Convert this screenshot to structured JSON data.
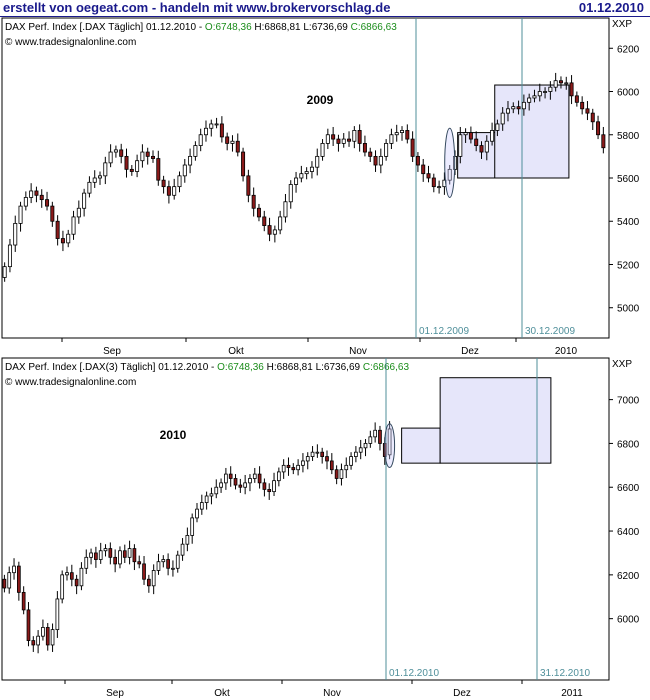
{
  "header": {
    "left_text": "erstellt von oegeat.com - handeln mit www.brokervorschlag.de",
    "date": "01.12.2010"
  },
  "colors": {
    "frame": "#000000",
    "vline": "#4f8f9a",
    "box_fill": "#e6e6fa",
    "candle_up": "#ffffff",
    "candle_down": "#8b1a1a",
    "ohlc_open": "#1a8c1a",
    "header": "#1a1a8c"
  },
  "chart_data": [
    {
      "type": "candlestick",
      "info_line": {
        "prefix": "DAX Perf. Index [.DAX  Täglich] 01.12.2010 - ",
        "open": "O:6748,36",
        "high": "H:6868,81",
        "low": "L:6736,69",
        "close": "C:6866,63"
      },
      "source": "© www.tradesignalonline.com",
      "corner_label": "XXP",
      "year_label": "2009",
      "x_tick_labels": [
        "Sep",
        "Okt",
        "Nov",
        "Dez",
        "2010"
      ],
      "y_ticks": [
        5000,
        5200,
        5400,
        5600,
        5800,
        6000,
        6200
      ],
      "ylim": [
        4860,
        6340
      ],
      "marker_labels": [
        "01.12.2009",
        "30.12.2009"
      ],
      "boxes": [
        {
          "start": 86,
          "end": 93,
          "low": 5600,
          "high": 5810
        },
        {
          "start": 93,
          "end": 106,
          "low": 5600,
          "high": 6030
        }
      ],
      "ellipse": {
        "index": 84,
        "low": 5510,
        "high": 5830
      },
      "closes": [
        5190,
        5290,
        5390,
        5470,
        5510,
        5540,
        5520,
        5500,
        5470,
        5400,
        5320,
        5300,
        5340,
        5420,
        5460,
        5530,
        5580,
        5600,
        5610,
        5670,
        5720,
        5730,
        5700,
        5640,
        5630,
        5680,
        5720,
        5700,
        5690,
        5590,
        5560,
        5520,
        5560,
        5610,
        5660,
        5700,
        5750,
        5800,
        5830,
        5850,
        5850,
        5790,
        5760,
        5770,
        5720,
        5610,
        5520,
        5460,
        5420,
        5380,
        5340,
        5360,
        5420,
        5490,
        5570,
        5600,
        5620,
        5630,
        5650,
        5700,
        5760,
        5800,
        5780,
        5760,
        5780,
        5770,
        5820,
        5760,
        5720,
        5700,
        5660,
        5700,
        5760,
        5800,
        5810,
        5820,
        5780,
        5700,
        5660,
        5620,
        5600,
        5560,
        5560,
        5590,
        5640,
        5700,
        5800,
        5810,
        5780,
        5750,
        5720,
        5770,
        5820,
        5850,
        5900,
        5920,
        5930,
        5920,
        5950,
        5970,
        5980,
        6000,
        6000,
        6020,
        6050,
        6040,
        6040,
        5980,
        5950,
        5920,
        5900,
        5860,
        5800,
        5740
      ],
      "opens": [
        5140,
        5190,
        5290,
        5390,
        5470,
        5510,
        5540,
        5520,
        5500,
        5470,
        5400,
        5320,
        5300,
        5340,
        5420,
        5460,
        5530,
        5580,
        5600,
        5610,
        5670,
        5720,
        5730,
        5700,
        5640,
        5630,
        5680,
        5720,
        5700,
        5690,
        5590,
        5560,
        5520,
        5560,
        5610,
        5660,
        5700,
        5750,
        5800,
        5830,
        5850,
        5850,
        5790,
        5760,
        5770,
        5720,
        5610,
        5520,
        5460,
        5420,
        5380,
        5340,
        5360,
        5420,
        5490,
        5570,
        5600,
        5620,
        5630,
        5650,
        5700,
        5760,
        5800,
        5780,
        5760,
        5780,
        5770,
        5820,
        5760,
        5720,
        5700,
        5660,
        5700,
        5760,
        5800,
        5810,
        5820,
        5780,
        5700,
        5660,
        5620,
        5600,
        5560,
        5560,
        5590,
        5640,
        5700,
        5800,
        5810,
        5780,
        5750,
        5720,
        5770,
        5820,
        5850,
        5900,
        5920,
        5930,
        5920,
        5950,
        5970,
        5980,
        6000,
        6000,
        6020,
        6050,
        6040,
        6040,
        5980,
        5950,
        5920,
        5900,
        5860,
        5800
      ]
    },
    {
      "type": "candlestick",
      "info_line": {
        "prefix": "DAX Perf. Index [.DAX(3)  Täglich] 01.12.2010 - ",
        "open": "O:6748,36",
        "high": "H:6868,81",
        "low": "L:6736,69",
        "close": "C:6866,63"
      },
      "source": "© www.tradesignalonline.com",
      "corner_label": "XXP",
      "year_label": "2010",
      "x_tick_labels": [
        "Sep",
        "Okt",
        "Nov",
        "Dez",
        "2011"
      ],
      "y_ticks": [
        6000,
        6200,
        6400,
        6600,
        6800,
        7000
      ],
      "ylim": [
        5720,
        7190
      ],
      "marker_labels": [
        "01.12.2010",
        "31.12.2010"
      ],
      "boxes": [
        {
          "start": 83,
          "end": 90,
          "low": 6710,
          "high": 6870
        },
        {
          "start": 91,
          "end": 113,
          "low": 6710,
          "high": 7100
        }
      ],
      "ellipse": {
        "index": 80,
        "low": 6690,
        "high": 6890
      },
      "closes": [
        6140,
        6210,
        6240,
        6120,
        6040,
        5900,
        5880,
        5920,
        5960,
        5880,
        5950,
        6090,
        6200,
        6210,
        6180,
        6150,
        6230,
        6280,
        6300,
        6270,
        6310,
        6320,
        6280,
        6250,
        6310,
        6280,
        6320,
        6260,
        6250,
        6180,
        6150,
        6220,
        6260,
        6270,
        6230,
        6230,
        6290,
        6340,
        6380,
        6460,
        6500,
        6530,
        6560,
        6570,
        6600,
        6620,
        6660,
        6640,
        6610,
        6600,
        6620,
        6640,
        6660,
        6620,
        6590,
        6580,
        6630,
        6670,
        6700,
        6690,
        6680,
        6700,
        6720,
        6740,
        6760,
        6760,
        6740,
        6720,
        6680,
        6640,
        6680,
        6700,
        6740,
        6760,
        6780,
        6800,
        6830,
        6860,
        6800,
        6740,
        6866
      ],
      "opens": [
        6180,
        6140,
        6210,
        6240,
        6120,
        6040,
        5900,
        5880,
        5920,
        5960,
        5880,
        5950,
        6090,
        6200,
        6210,
        6180,
        6150,
        6230,
        6280,
        6300,
        6270,
        6310,
        6320,
        6280,
        6250,
        6310,
        6280,
        6320,
        6260,
        6250,
        6180,
        6150,
        6220,
        6260,
        6270,
        6230,
        6230,
        6290,
        6340,
        6380,
        6460,
        6500,
        6530,
        6560,
        6570,
        6600,
        6620,
        6660,
        6640,
        6610,
        6600,
        6620,
        6640,
        6660,
        6620,
        6590,
        6580,
        6630,
        6670,
        6700,
        6690,
        6680,
        6700,
        6720,
        6740,
        6760,
        6760,
        6740,
        6720,
        6680,
        6640,
        6680,
        6700,
        6740,
        6760,
        6780,
        6800,
        6830,
        6860,
        6800,
        6748
      ]
    }
  ]
}
